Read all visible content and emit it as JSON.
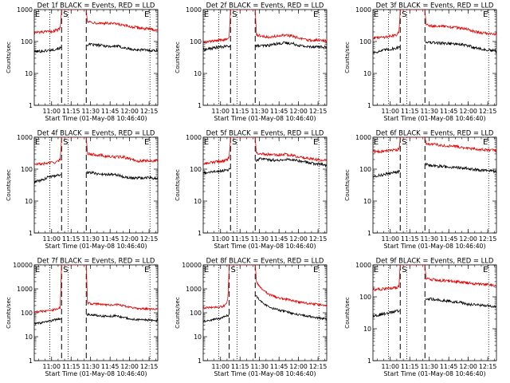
{
  "figure": {
    "x_axis_label": "Start Time (01-May-08 10:46:40)",
    "y_axis_label": "Counts/sec",
    "x_tick_labels": [
      "11:00",
      "11:15",
      "11:30",
      "11:45",
      "12:00",
      "12:15"
    ],
    "y_tick_labels": [
      "1",
      "10",
      "100",
      "1000",
      "10000"
    ],
    "attenuator_markers": [
      "E",
      "S",
      "E"
    ],
    "colors": {
      "events": "#000000",
      "lld": "#e00000",
      "axes": "#000000",
      "background": "#ffffff"
    }
  },
  "chart_data": [
    {
      "type": "line",
      "title": "Det 1f BLACK = Events, RED = LLD",
      "xlabel": "Start Time (01-May-08 10:46:40)",
      "ylabel": "Counts/sec",
      "x_units": "minutes after 10:46:40",
      "xlim": [
        0,
        95
      ],
      "ylim": [
        1,
        1000
      ],
      "y_scale": "log",
      "grid": false,
      "vlines": {
        "dotted": [
          12,
          26,
          89
        ],
        "dashed": [
          21,
          40
        ]
      },
      "gap": [
        21,
        40
      ],
      "series": [
        {
          "name": "Events",
          "color": "#000000",
          "x": [
            0,
            6,
            10,
            14,
            18,
            21,
            40,
            42,
            46,
            52,
            58,
            64,
            70,
            76,
            82,
            88,
            95
          ],
          "y": [
            48,
            50,
            52,
            55,
            60,
            62,
            80,
            80,
            78,
            75,
            70,
            72,
            62,
            55,
            55,
            53,
            52
          ]
        },
        {
          "name": "LLD",
          "color": "#e00000",
          "x": [
            0,
            6,
            10,
            14,
            18,
            20,
            21,
            40,
            41,
            44,
            50,
            56,
            62,
            68,
            74,
            80,
            86,
            95
          ],
          "y": [
            190,
            195,
            200,
            210,
            230,
            280,
            1000,
            1000,
            420,
            400,
            380,
            370,
            360,
            320,
            290,
            270,
            250,
            230
          ]
        }
      ]
    },
    {
      "type": "line",
      "title": "Det 2f BLACK = Events, RED = LLD",
      "xlabel": "Start Time (01-May-08 10:46:40)",
      "ylabel": "Counts/sec",
      "x_units": "minutes after 10:46:40",
      "xlim": [
        0,
        95
      ],
      "ylim": [
        1,
        1000
      ],
      "y_scale": "log",
      "grid": false,
      "vlines": {
        "dotted": [
          12,
          26,
          89
        ],
        "dashed": [
          21,
          40
        ]
      },
      "gap": [
        21,
        40
      ],
      "series": [
        {
          "name": "Events",
          "color": "#000000",
          "x": [
            0,
            6,
            10,
            14,
            18,
            21,
            40,
            44,
            50,
            56,
            62,
            68,
            74,
            80,
            86,
            95
          ],
          "y": [
            55,
            60,
            65,
            68,
            70,
            75,
            72,
            72,
            75,
            85,
            90,
            88,
            75,
            68,
            70,
            65
          ]
        },
        {
          "name": "LLD",
          "color": "#e00000",
          "x": [
            0,
            6,
            10,
            14,
            18,
            20,
            21,
            40,
            41,
            44,
            50,
            56,
            62,
            68,
            74,
            80,
            86,
            95
          ],
          "y": [
            95,
            100,
            105,
            110,
            120,
            150,
            1000,
            1000,
            160,
            150,
            140,
            145,
            155,
            150,
            125,
            110,
            110,
            105
          ]
        }
      ]
    },
    {
      "type": "line",
      "title": "Det 3f BLACK = Events, RED = LLD",
      "xlabel": "Start Time (01-May-08 10:46:40)",
      "ylabel": "Counts/sec",
      "x_units": "minutes after 10:46:40",
      "xlim": [
        0,
        95
      ],
      "ylim": [
        1,
        1000
      ],
      "y_scale": "log",
      "grid": false,
      "vlines": {
        "dotted": [
          12,
          26,
          89
        ],
        "dashed": [
          21,
          40
        ]
      },
      "gap": [
        21,
        40
      ],
      "series": [
        {
          "name": "Events",
          "color": "#000000",
          "x": [
            0,
            6,
            10,
            14,
            18,
            21,
            40,
            44,
            50,
            56,
            62,
            68,
            74,
            80,
            86,
            95
          ],
          "y": [
            45,
            50,
            55,
            58,
            62,
            70,
            100,
            92,
            90,
            88,
            85,
            80,
            72,
            62,
            55,
            50
          ]
        },
        {
          "name": "LLD",
          "color": "#e00000",
          "x": [
            0,
            6,
            10,
            14,
            18,
            20,
            21,
            40,
            41,
            44,
            50,
            56,
            62,
            68,
            74,
            80,
            86,
            95
          ],
          "y": [
            130,
            135,
            140,
            150,
            160,
            190,
            1000,
            1000,
            340,
            320,
            300,
            290,
            280,
            260,
            230,
            200,
            180,
            170
          ]
        }
      ]
    },
    {
      "type": "line",
      "title": "Det 4f BLACK = Events, RED = LLD",
      "xlabel": "Start Time (01-May-08 10:46:40)",
      "ylabel": "Counts/sec",
      "x_units": "minutes after 10:46:40",
      "xlim": [
        0,
        95
      ],
      "ylim": [
        1,
        1000
      ],
      "y_scale": "log",
      "grid": false,
      "vlines": {
        "dotted": [
          12,
          26,
          89
        ],
        "dashed": [
          21,
          40
        ]
      },
      "gap": [
        21,
        40
      ],
      "series": [
        {
          "name": "Events",
          "color": "#000000",
          "x": [
            0,
            6,
            10,
            14,
            18,
            21,
            40,
            44,
            50,
            56,
            62,
            68,
            74,
            80,
            86,
            95
          ],
          "y": [
            40,
            45,
            55,
            60,
            65,
            70,
            80,
            78,
            70,
            70,
            68,
            60,
            52,
            52,
            55,
            50
          ]
        },
        {
          "name": "LLD",
          "color": "#e00000",
          "x": [
            0,
            6,
            10,
            14,
            18,
            20,
            21,
            40,
            41,
            44,
            50,
            56,
            62,
            68,
            74,
            80,
            86,
            95
          ],
          "y": [
            140,
            145,
            155,
            160,
            170,
            200,
            1000,
            1000,
            310,
            290,
            280,
            250,
            240,
            240,
            210,
            180,
            185,
            180
          ]
        }
      ]
    },
    {
      "type": "line",
      "title": "Det 5f BLACK = Events, RED = LLD",
      "xlabel": "Start Time (01-May-08 10:46:40)",
      "ylabel": "Counts/sec",
      "x_units": "minutes after 10:46:40",
      "xlim": [
        0,
        95
      ],
      "ylim": [
        1,
        1000
      ],
      "y_scale": "log",
      "grid": false,
      "vlines": {
        "dotted": [
          12,
          26,
          89
        ],
        "dashed": [
          21,
          40
        ]
      },
      "gap": [
        21,
        40
      ],
      "series": [
        {
          "name": "Events",
          "color": "#000000",
          "x": [
            0,
            6,
            10,
            14,
            18,
            21,
            44,
            48,
            54,
            60,
            66,
            72,
            78,
            84,
            90,
            95
          ],
          "y": [
            75,
            80,
            85,
            90,
            95,
            100,
            210,
            200,
            195,
            190,
            205,
            190,
            170,
            150,
            145,
            130
          ]
        },
        {
          "name": "LLD",
          "color": "#e00000",
          "x": [
            0,
            6,
            10,
            14,
            18,
            20,
            21,
            40,
            41,
            44,
            50,
            56,
            62,
            68,
            74,
            80,
            86,
            95
          ],
          "y": [
            150,
            160,
            170,
            180,
            190,
            230,
            1000,
            1000,
            320,
            310,
            290,
            280,
            290,
            270,
            240,
            220,
            200,
            190
          ]
        }
      ]
    },
    {
      "type": "line",
      "title": "Det 6f BLACK = Events, RED = LLD",
      "xlabel": "Start Time (01-May-08 10:46:40)",
      "ylabel": "Counts/sec",
      "x_units": "minutes after 10:46:40",
      "xlim": [
        0,
        95
      ],
      "ylim": [
        1,
        1000
      ],
      "y_scale": "log",
      "grid": false,
      "vlines": {
        "dotted": [
          12,
          26,
          89
        ],
        "dashed": [
          21,
          40
        ]
      },
      "gap": [
        21,
        40
      ],
      "series": [
        {
          "name": "Events",
          "color": "#000000",
          "x": [
            0,
            6,
            10,
            14,
            18,
            21,
            40,
            44,
            50,
            56,
            62,
            68,
            74,
            80,
            86,
            95
          ],
          "y": [
            60,
            65,
            70,
            75,
            80,
            85,
            150,
            130,
            125,
            120,
            115,
            110,
            105,
            95,
            90,
            85
          ]
        },
        {
          "name": "LLD",
          "color": "#e00000",
          "x": [
            0,
            6,
            10,
            14,
            18,
            20,
            21,
            40,
            41,
            44,
            50,
            56,
            62,
            68,
            74,
            80,
            86,
            95
          ],
          "y": [
            350,
            360,
            370,
            380,
            400,
            420,
            1000,
            1000,
            650,
            620,
            580,
            540,
            520,
            480,
            450,
            420,
            400,
            380
          ]
        }
      ]
    },
    {
      "type": "line",
      "title": "Det 7f BLACK = Events, RED = LLD",
      "xlabel": "Start Time (01-May-08 10:46:40)",
      "ylabel": "Counts/sec",
      "x_units": "minutes after 10:46:40",
      "xlim": [
        0,
        95
      ],
      "ylim": [
        1,
        10000
      ],
      "y_scale": "log",
      "grid": false,
      "vlines": {
        "dotted": [
          12,
          26,
          89
        ],
        "dashed": [
          21,
          40
        ]
      },
      "gap": [
        21,
        40
      ],
      "series": [
        {
          "name": "Events",
          "color": "#000000",
          "x": [
            0,
            6,
            10,
            14,
            18,
            21,
            40,
            44,
            50,
            56,
            62,
            68,
            74,
            80,
            86,
            95
          ],
          "y": [
            35,
            38,
            42,
            48,
            55,
            60,
            85,
            80,
            75,
            70,
            75,
            65,
            55,
            52,
            50,
            48
          ]
        },
        {
          "name": "LLD",
          "color": "#e00000",
          "x": [
            0,
            6,
            10,
            14,
            18,
            20,
            21,
            40,
            41,
            44,
            50,
            56,
            62,
            68,
            74,
            80,
            86,
            95
          ],
          "y": [
            110,
            115,
            120,
            130,
            140,
            170,
            10000,
            10000,
            260,
            240,
            230,
            210,
            220,
            200,
            170,
            150,
            145,
            140
          ]
        }
      ]
    },
    {
      "type": "line",
      "title": "Det 8f BLACK = Events, RED = LLD",
      "xlabel": "Start Time (01-May-08 10:46:40)",
      "ylabel": "Counts/sec",
      "x_units": "minutes after 10:46:40",
      "xlim": [
        0,
        95
      ],
      "ylim": [
        1,
        10000
      ],
      "y_scale": "log",
      "grid": false,
      "vlines": {
        "dotted": [
          12,
          26,
          89
        ],
        "dashed": [
          20,
          40
        ]
      },
      "gap": [
        20,
        40
      ],
      "series": [
        {
          "name": "Events",
          "color": "#000000",
          "x": [
            0,
            6,
            10,
            14,
            17,
            20,
            40,
            42,
            46,
            52,
            58,
            64,
            70,
            76,
            82,
            88,
            95
          ],
          "y": [
            45,
            50,
            55,
            60,
            70,
            80,
            600,
            420,
            250,
            160,
            130,
            110,
            90,
            80,
            70,
            62,
            55
          ]
        },
        {
          "name": "LLD",
          "color": "#e00000",
          "x": [
            0,
            6,
            10,
            14,
            17,
            19,
            20,
            40,
            41,
            44,
            50,
            56,
            62,
            68,
            74,
            80,
            86,
            95
          ],
          "y": [
            160,
            165,
            175,
            180,
            200,
            350,
            10000,
            10000,
            2000,
            1100,
            600,
            450,
            380,
            330,
            280,
            250,
            230,
            200
          ]
        }
      ]
    },
    {
      "type": "line",
      "title": "Det 9f BLACK = Events, RED = LLD",
      "xlabel": "Start Time (01-May-08 10:46:40)",
      "ylabel": "Counts/sec",
      "x_units": "minutes after 10:46:40",
      "xlim": [
        0,
        95
      ],
      "ylim": [
        1,
        1000
      ],
      "y_scale": "log",
      "grid": false,
      "vlines": {
        "dotted": [
          12,
          26,
          89
        ],
        "dashed": [
          21,
          40
        ]
      },
      "gap": [
        21,
        40
      ],
      "series": [
        {
          "name": "Events",
          "color": "#000000",
          "x": [
            0,
            6,
            10,
            14,
            18,
            21,
            40,
            44,
            50,
            56,
            62,
            68,
            74,
            80,
            86,
            95
          ],
          "y": [
            25,
            28,
            30,
            32,
            35,
            38,
            90,
            85,
            80,
            75,
            70,
            65,
            58,
            55,
            52,
            50
          ]
        },
        {
          "name": "LLD",
          "color": "#e00000",
          "x": [
            0,
            6,
            10,
            14,
            18,
            20,
            21,
            40,
            41,
            44,
            50,
            56,
            62,
            68,
            74,
            80,
            86,
            95
          ],
          "y": [
            170,
            175,
            180,
            185,
            190,
            210,
            1000,
            1000,
            370,
            350,
            330,
            320,
            310,
            290,
            270,
            250,
            240,
            230
          ]
        }
      ]
    }
  ]
}
